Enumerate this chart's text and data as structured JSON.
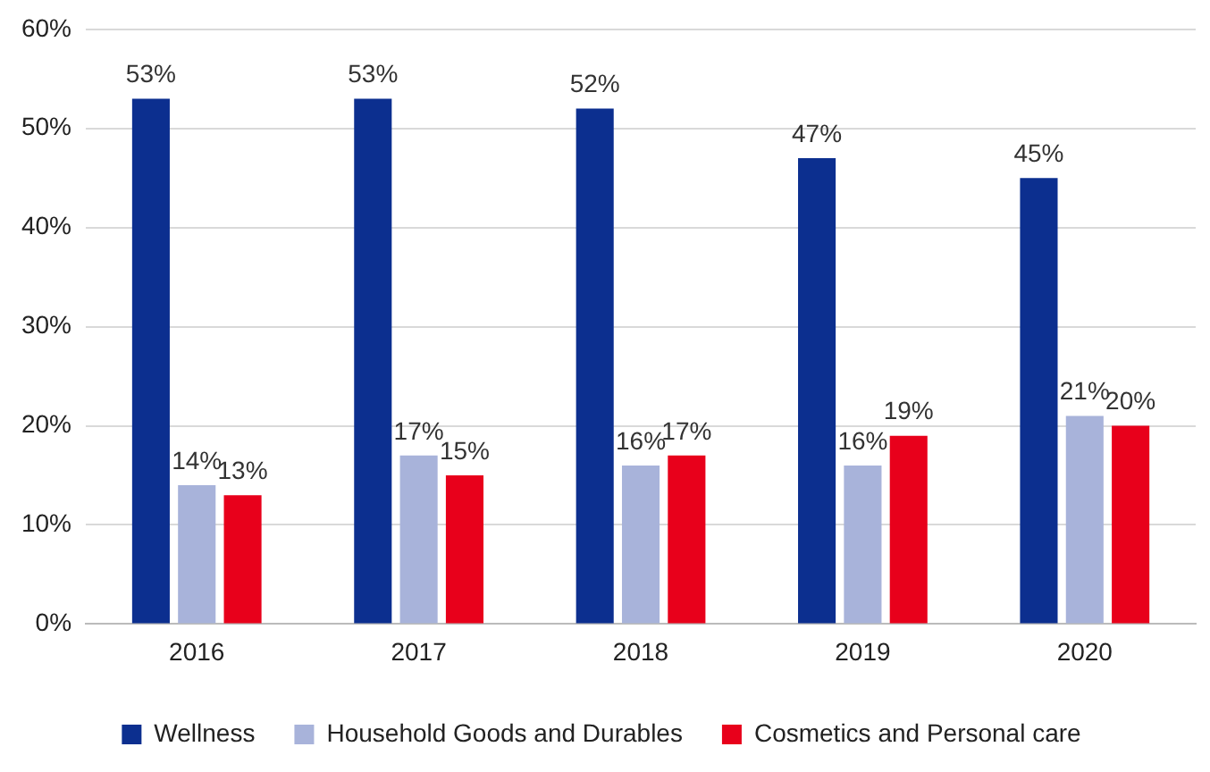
{
  "chart_data": {
    "type": "bar",
    "categories": [
      "2016",
      "2017",
      "2018",
      "2019",
      "2020"
    ],
    "series": [
      {
        "name": "Wellness",
        "color": "#0c2f8f",
        "values": [
          53,
          53,
          52,
          47,
          45
        ],
        "value_labels": [
          "53%",
          "53%",
          "52%",
          "47%",
          "45%"
        ]
      },
      {
        "name": "Household Goods and Durables",
        "color": "#a8b3da",
        "values": [
          14,
          17,
          16,
          16,
          21
        ],
        "value_labels": [
          "14%",
          "17%",
          "16%",
          "16%",
          "21%"
        ]
      },
      {
        "name": "Cosmetics and Personal care",
        "color": "#e8001b",
        "values": [
          13,
          15,
          17,
          19,
          20
        ],
        "value_labels": [
          "13%",
          "15%",
          "17%",
          "19%",
          "20%"
        ]
      }
    ],
    "ylim": [
      0,
      60
    ],
    "yticks": [
      {
        "value": 0,
        "label": "0%"
      },
      {
        "value": 10,
        "label": "10%"
      },
      {
        "value": 20,
        "label": "20%"
      },
      {
        "value": 30,
        "label": "30%"
      },
      {
        "value": 40,
        "label": "40%"
      },
      {
        "value": 50,
        "label": "50%"
      },
      {
        "value": 60,
        "label": "60%"
      }
    ],
    "grid": "y",
    "legend": "bottom"
  }
}
